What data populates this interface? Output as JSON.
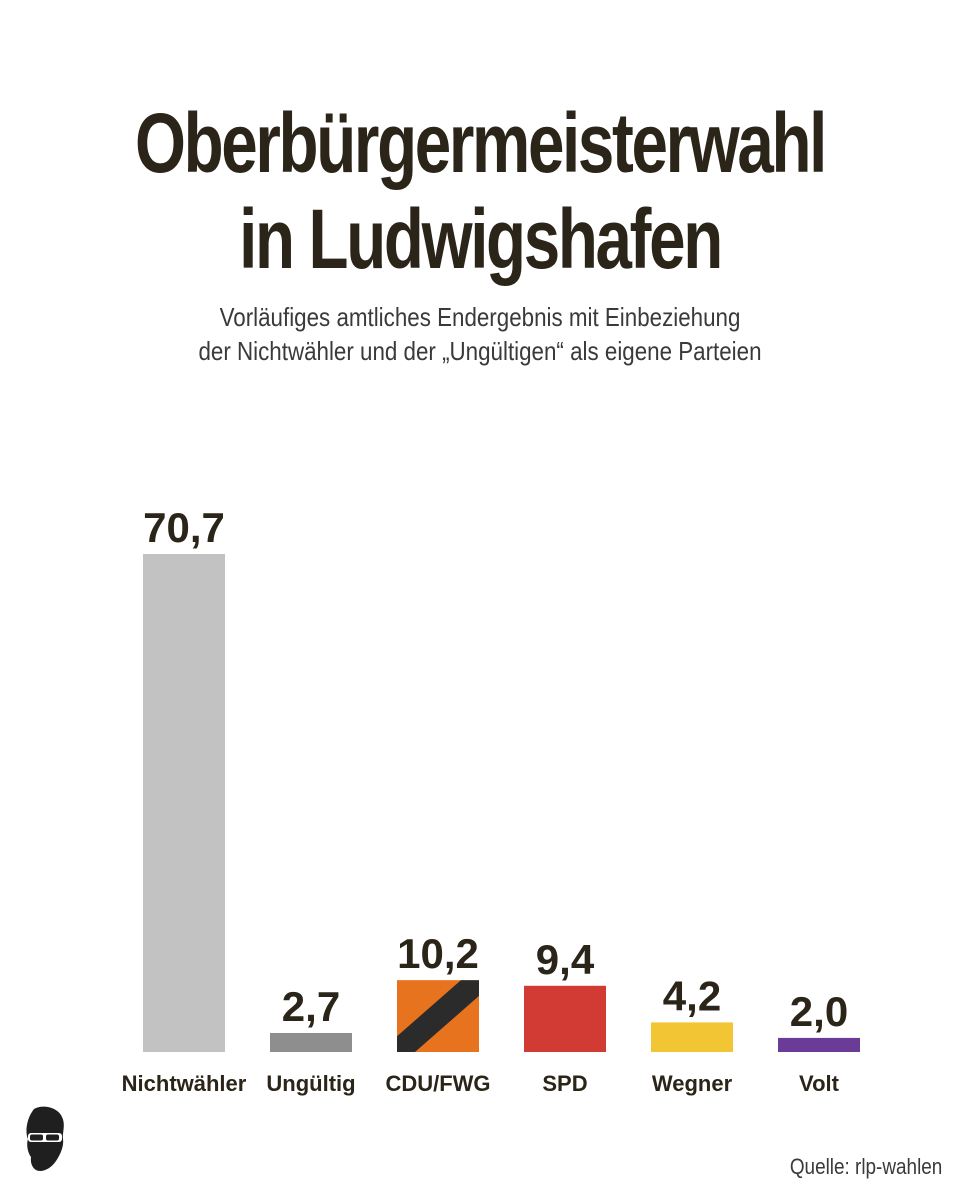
{
  "header": {
    "title_line1": "Oberbürgermeisterwahl",
    "title_line2": "in Ludwigshafen",
    "subtitle_line1": "Vorläufiges amtliches Endergebnis mit Einbeziehung",
    "subtitle_line2": "der Nichtwähler und der „Ungültigen“ als eigene Parteien"
  },
  "source": "Quelle: rlp-wahlen",
  "logo_icon": "face-with-sunglasses-icon",
  "chart_data": {
    "type": "bar",
    "categories": [
      "Nichtwähler",
      "Ungültig",
      "CDU/FWG",
      "SPD",
      "Wegner",
      "Volt"
    ],
    "values": [
      70.7,
      2.7,
      10.2,
      9.4,
      4.2,
      2.0
    ],
    "value_labels": [
      "70,7",
      "2,7",
      "10,2",
      "9,4",
      "4,2",
      "2,0"
    ],
    "colors": [
      "#c2c2c2",
      "#8e8e8e",
      "cdu-fwg-stripe",
      "#d13b33",
      "#f2c534",
      "#6a3c98"
    ],
    "stripe_colors": [
      "#2b2b2b",
      "#e8731f"
    ],
    "title": "Oberbürgermeisterwahl in Ludwigshafen",
    "xlabel": "",
    "ylabel": "",
    "ylim": [
      0,
      70.7
    ],
    "grid": false,
    "legend": "none"
  }
}
